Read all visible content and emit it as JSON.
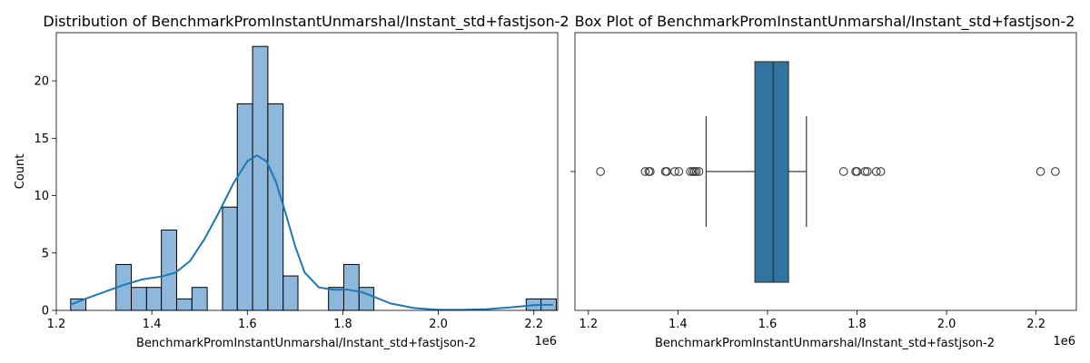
{
  "chart_data": [
    {
      "type": "bar",
      "subtype": "histogram-with-kde",
      "title": "Distribution of BenchmarkPromInstantUnmarshal/Instant_std+fastjson-2",
      "xlabel": "BenchmarkPromInstantUnmarshal/Instant_std+fastjson-2",
      "ylabel": "Count",
      "x_offset_label": "1e6",
      "xlim": [
        1.2,
        2.25
      ],
      "ylim": [
        0,
        24.2
      ],
      "xticks": [
        1.2,
        1.4,
        1.6,
        1.8,
        2.0,
        2.2
      ],
      "xtick_labels": [
        "1.2",
        "1.4",
        "1.6",
        "1.8",
        "2.0",
        "2.2"
      ],
      "yticks": [
        0,
        5,
        10,
        15,
        20
      ],
      "ytick_labels": [
        "0",
        "5",
        "10",
        "15",
        "20"
      ],
      "bins": [
        {
          "x0": 1.23,
          "x1": 1.262,
          "count": 1
        },
        {
          "x0": 1.325,
          "x1": 1.357,
          "count": 4
        },
        {
          "x0": 1.357,
          "x1": 1.389,
          "count": 2
        },
        {
          "x0": 1.389,
          "x1": 1.42,
          "count": 2
        },
        {
          "x0": 1.42,
          "x1": 1.452,
          "count": 7
        },
        {
          "x0": 1.452,
          "x1": 1.484,
          "count": 1
        },
        {
          "x0": 1.484,
          "x1": 1.516,
          "count": 2
        },
        {
          "x0": 1.548,
          "x1": 1.579,
          "count": 9
        },
        {
          "x0": 1.579,
          "x1": 1.611,
          "count": 18
        },
        {
          "x0": 1.611,
          "x1": 1.643,
          "count": 23
        },
        {
          "x0": 1.643,
          "x1": 1.675,
          "count": 18
        },
        {
          "x0": 1.675,
          "x1": 1.706,
          "count": 3
        },
        {
          "x0": 1.77,
          "x1": 1.802,
          "count": 2
        },
        {
          "x0": 1.802,
          "x1": 1.834,
          "count": 4
        },
        {
          "x0": 1.834,
          "x1": 1.865,
          "count": 2
        },
        {
          "x0": 2.184,
          "x1": 2.215,
          "count": 1
        },
        {
          "x0": 2.215,
          "x1": 2.247,
          "count": 1
        }
      ],
      "kde": {
        "x": [
          1.23,
          1.26,
          1.3,
          1.34,
          1.38,
          1.42,
          1.45,
          1.48,
          1.51,
          1.54,
          1.57,
          1.6,
          1.62,
          1.64,
          1.66,
          1.68,
          1.7,
          1.72,
          1.75,
          1.78,
          1.81,
          1.84,
          1.87,
          1.9,
          1.95,
          2.0,
          2.05,
          2.1,
          2.15,
          2.2,
          2.24
        ],
        "y": [
          0.5,
          1.0,
          1.6,
          2.2,
          2.7,
          2.95,
          3.3,
          4.3,
          6.2,
          8.5,
          11.0,
          13.0,
          13.5,
          13.0,
          11.2,
          8.5,
          5.6,
          3.3,
          2.0,
          1.8,
          1.8,
          1.6,
          1.1,
          0.6,
          0.2,
          0.05,
          0.05,
          0.1,
          0.25,
          0.45,
          0.5
        ]
      }
    },
    {
      "type": "box",
      "title": "Box Plot of BenchmarkPromInstantUnmarshal/Instant_std+fastjson-2",
      "xlabel": "BenchmarkPromInstantUnmarshal/Instant_std+fastjson-2",
      "x_offset_label": "1e6",
      "xlim": [
        1.17,
        2.29
      ],
      "xticks": [
        1.2,
        1.4,
        1.6,
        1.8,
        2.0,
        2.2
      ],
      "xtick_labels": [
        "1.2",
        "1.4",
        "1.6",
        "1.8",
        "2.0",
        "2.2"
      ],
      "q1": 1.572,
      "median": 1.613,
      "q3": 1.647,
      "whisker_low": 1.463,
      "whisker_high": 1.687,
      "fliers": [
        1.227,
        1.327,
        1.335,
        1.338,
        1.372,
        1.375,
        1.393,
        1.402,
        1.428,
        1.433,
        1.437,
        1.441,
        1.447,
        1.77,
        1.797,
        1.8,
        1.818,
        1.823,
        1.843,
        1.853,
        2.21,
        2.243
      ]
    }
  ]
}
